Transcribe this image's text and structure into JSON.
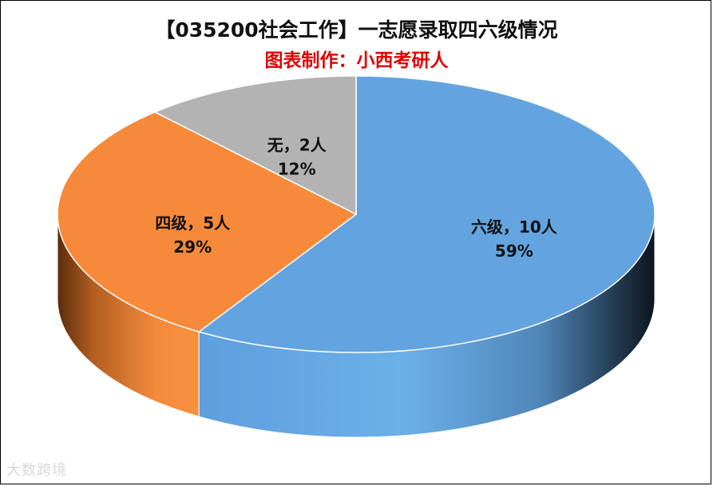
{
  "header": {
    "title": "【035200社会工作】一志愿录取四六级情况",
    "subtitle": "图表制作：小西考研人"
  },
  "watermark": "大数跨境",
  "chart_data": {
    "type": "pie",
    "style": "3d-exploded-none",
    "legend": "none",
    "slices": [
      {
        "name": "六级",
        "value": 10,
        "percent": "59%",
        "label_line1": "六级，10人",
        "label_line2": "59%",
        "color": "#63a4e0"
      },
      {
        "name": "四级",
        "value": 5,
        "percent": "29%",
        "label_line1": "四级，5人",
        "label_line2": "29%",
        "color": "#f68a3a"
      },
      {
        "name": "无",
        "value": 2,
        "percent": "12%",
        "label_line1": "无，2人",
        "label_line2": "12%",
        "color": "#b3b3b3"
      }
    ]
  }
}
